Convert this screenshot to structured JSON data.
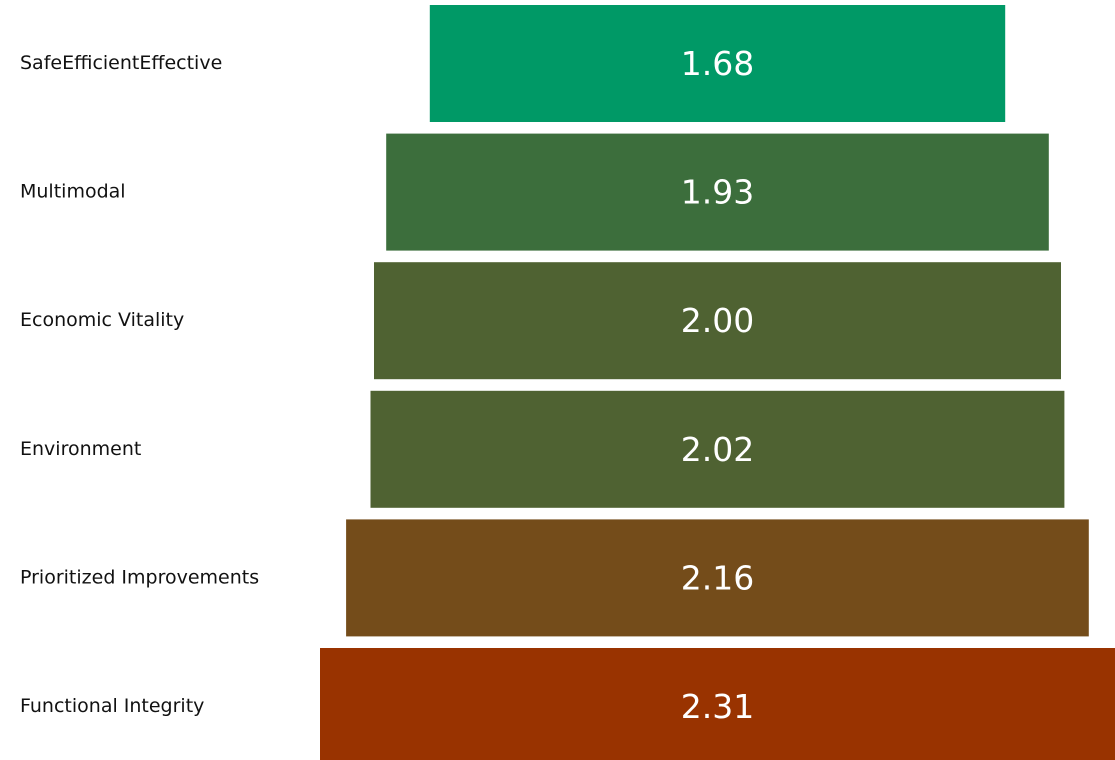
{
  "chart_data": {
    "type": "funnel",
    "categories": [
      "SafeEfficientEffective",
      "Multimodal",
      "Economic Vitality",
      "Environment",
      "Prioritized Improvements",
      "Functional Integrity"
    ],
    "values": [
      1.68,
      1.93,
      2.0,
      2.02,
      2.16,
      2.31
    ],
    "value_labels": [
      "1.68",
      "1.93",
      "2.00",
      "2.02",
      "2.16",
      "2.31"
    ],
    "colors": [
      "#009966",
      "#3C6E3C",
      "#4F6232",
      "#4F6232",
      "#744C1A",
      "#993300"
    ],
    "legend": "none",
    "grid": false
  }
}
